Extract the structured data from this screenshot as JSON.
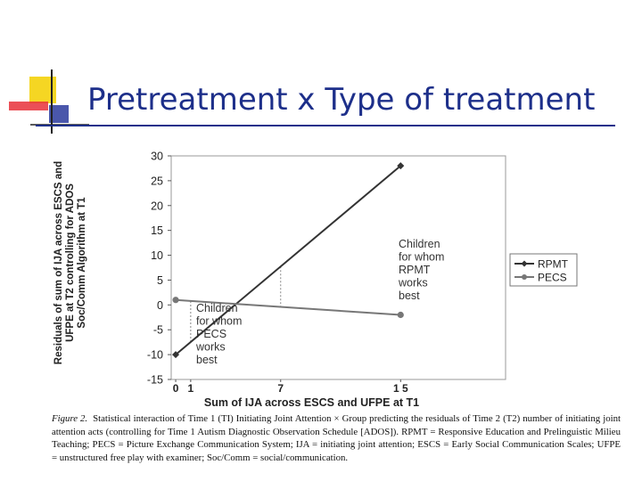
{
  "slide": {
    "title": "Pretreatment x Type of treatment"
  },
  "figure_caption": {
    "label": "Figure 2.",
    "text": "Statistical interaction of Time 1 (TI) Initiating Joint Attention × Group predicting the residuals of Time 2 (T2) number of initiating joint attention acts (controlling for Time 1 Autism Diagnostic Observation Schedule [ADOS]). RPMT = Responsive Education and Prelinguistic Milieu Teaching; PECS = Picture Exchange Communication System; IJA = initiating joint attention; ESCS = Early Social Communication Scales; UFPE = unstructured free play with examiner; Soc/Comm = social/communication."
  },
  "colors": {
    "title": "#1d2f8a",
    "rpmt": "#333333",
    "pecs": "#777777",
    "logo_yellow": "#f5d623",
    "logo_red": "#e8303a",
    "logo_blue": "#2a3a9c"
  },
  "chart_data": {
    "type": "line",
    "xlabel": "Sum of IJA across ESCS and UFPE at T1",
    "ylabel_lines": [
      "Residuals of sum of IJA across ESCS and",
      "UFPE at T2 controlling for ADOS",
      "Soc/Comm Algorithm at T1"
    ],
    "x_ticks": [
      "0",
      "1",
      "7",
      "1 5"
    ],
    "x_tick_values": [
      0,
      1,
      7,
      15
    ],
    "xlim": [
      -0.3,
      22
    ],
    "ylim": [
      -15,
      30
    ],
    "y_ticks": [
      30,
      25,
      20,
      15,
      10,
      5,
      0,
      -5,
      -10,
      -15
    ],
    "grid": false,
    "legend_position": "right",
    "series": [
      {
        "name": "RPMT",
        "x": [
          0,
          15
        ],
        "y": [
          -10,
          28
        ],
        "marker": "diamond"
      },
      {
        "name": "PECS",
        "x": [
          0,
          15
        ],
        "y": [
          1,
          -2
        ],
        "marker": "circle"
      }
    ],
    "annotations": [
      {
        "lines": [
          "Children",
          "for whom",
          "RPMT",
          "works",
          "best"
        ],
        "at_x": 7
      },
      {
        "lines": [
          "Children",
          "for whom",
          "PECS",
          "works",
          "best"
        ],
        "at_x": 1
      }
    ],
    "reference_x": [
      1,
      7
    ]
  }
}
